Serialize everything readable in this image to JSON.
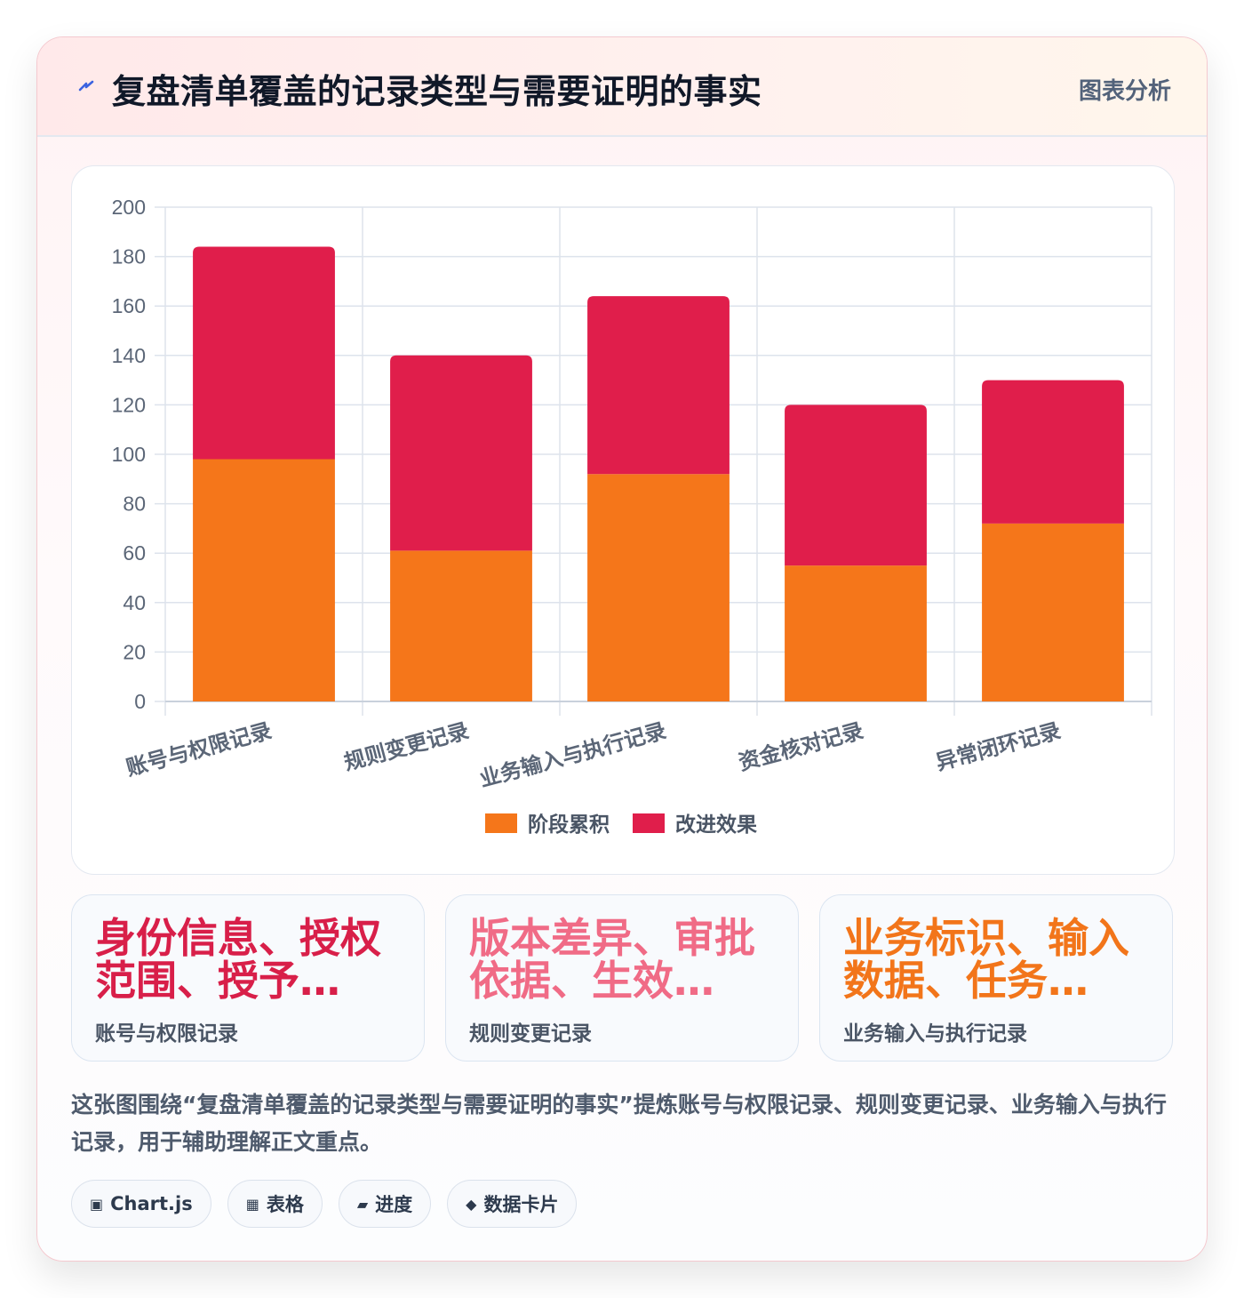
{
  "header": {
    "title": "复盘清单覆盖的记录类型与需要证明的事实",
    "badge": "图表分析"
  },
  "chart_data": {
    "type": "bar",
    "stacked": true,
    "categories": [
      "账号与权限记录",
      "规则变更记录",
      "业务输入与执行记录",
      "资金核对记录",
      "异常闭环记录"
    ],
    "series": [
      {
        "name": "阶段累积",
        "color": "#f5761a",
        "values": [
          98,
          61,
          92,
          55,
          72
        ]
      },
      {
        "name": "改进效果",
        "color": "#e01e4b",
        "values": [
          86,
          79,
          72,
          65,
          58
        ]
      }
    ],
    "ylim": [
      0,
      200
    ],
    "yticks": [
      0,
      20,
      40,
      60,
      80,
      100,
      120,
      140,
      160,
      180,
      200
    ],
    "grid": true,
    "legend": "bottom-center"
  },
  "stats": [
    {
      "value": "身份信息、授权范围、授予…",
      "label": "账号与权限记录",
      "color": "#d81f49"
    },
    {
      "value": "版本差异、审批依据、生效…",
      "label": "规则变更记录",
      "color": "#f06b86"
    },
    {
      "value": "业务标识、输入数据、任务…",
      "label": "业务输入与执行记录",
      "color": "#f2751a"
    }
  ],
  "description": "这张图围绕“复盘清单覆盖的记录类型与需要证明的事实”提炼账号与权限记录、规则变更记录、业务输入与执行记录，用于辅助理解正文重点。",
  "tags": [
    {
      "icon": "chart-icon",
      "glyph": "▣",
      "label": "Chart.js"
    },
    {
      "icon": "table-icon",
      "glyph": "▦",
      "label": "表格"
    },
    {
      "icon": "progress-icon",
      "glyph": "▰",
      "label": "进度"
    },
    {
      "icon": "data-card-icon",
      "glyph": "◆",
      "label": "数据卡片"
    }
  ]
}
